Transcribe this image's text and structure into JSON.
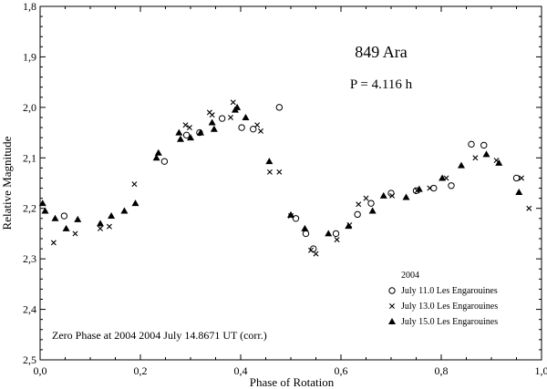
{
  "chart_data": {
    "type": "scatter",
    "title": "849 Ara",
    "subtitle": "P = 4.116 h",
    "xlabel": "Phase of Rotation",
    "ylabel": "Relative Magnitude",
    "xlim": [
      0.0,
      1.0
    ],
    "ylim": [
      1.8,
      2.5
    ],
    "y_inverted": true,
    "x_ticks": [
      {
        "value": 0.0,
        "label": "0,0"
      },
      {
        "value": 0.2,
        "label": "0,2"
      },
      {
        "value": 0.4,
        "label": "0,4"
      },
      {
        "value": 0.6,
        "label": "0,6"
      },
      {
        "value": 0.8,
        "label": "0,8"
      },
      {
        "value": 1.0,
        "label": "1,0"
      }
    ],
    "y_ticks": [
      {
        "value": 1.8,
        "label": "1,8"
      },
      {
        "value": 1.9,
        "label": "1,9"
      },
      {
        "value": 2.0,
        "label": "2,0"
      },
      {
        "value": 2.1,
        "label": "2,1"
      },
      {
        "value": 2.2,
        "label": "2,2"
      },
      {
        "value": 2.3,
        "label": "2,3"
      },
      {
        "value": 2.4,
        "label": "2,4"
      },
      {
        "value": 2.5,
        "label": "2,5"
      }
    ],
    "legend_title": "2004",
    "legend_position": "bottom-right",
    "annotation": "Zero Phase at 2004 2004 July 14.8671 UT (corr.)",
    "grid": false,
    "series": [
      {
        "name": "July 11.0 Les Engarouines",
        "marker": "circle",
        "points": [
          [
            0.048,
            2.215
          ],
          [
            0.248,
            2.107
          ],
          [
            0.292,
            2.055
          ],
          [
            0.318,
            2.05
          ],
          [
            0.363,
            2.022
          ],
          [
            0.402,
            2.04
          ],
          [
            0.425,
            2.043
          ],
          [
            0.477,
            2.0
          ],
          [
            0.51,
            2.22
          ],
          [
            0.53,
            2.25
          ],
          [
            0.545,
            2.28
          ],
          [
            0.59,
            2.25
          ],
          [
            0.633,
            2.212
          ],
          [
            0.66,
            2.19
          ],
          [
            0.7,
            2.17
          ],
          [
            0.75,
            2.165
          ],
          [
            0.785,
            2.16
          ],
          [
            0.82,
            2.155
          ],
          [
            0.86,
            2.073
          ],
          [
            0.885,
            2.075
          ],
          [
            0.95,
            2.14
          ]
        ]
      },
      {
        "name": "July 13.0 Les Engarouines",
        "marker": "cross",
        "points": [
          [
            0.027,
            2.268
          ],
          [
            0.07,
            2.25
          ],
          [
            0.12,
            2.24
          ],
          [
            0.138,
            2.236
          ],
          [
            0.188,
            2.152
          ],
          [
            0.29,
            2.035
          ],
          [
            0.298,
            2.04
          ],
          [
            0.338,
            2.01
          ],
          [
            0.343,
            2.015
          ],
          [
            0.38,
            2.02
          ],
          [
            0.385,
            1.99
          ],
          [
            0.433,
            2.035
          ],
          [
            0.44,
            2.047
          ],
          [
            0.458,
            2.128
          ],
          [
            0.477,
            2.128
          ],
          [
            0.5,
            2.215
          ],
          [
            0.54,
            2.283
          ],
          [
            0.55,
            2.29
          ],
          [
            0.592,
            2.262
          ],
          [
            0.617,
            2.233
          ],
          [
            0.635,
            2.192
          ],
          [
            0.65,
            2.18
          ],
          [
            0.702,
            2.175
          ],
          [
            0.752,
            2.165
          ],
          [
            0.777,
            2.16
          ],
          [
            0.81,
            2.14
          ],
          [
            0.868,
            2.1
          ],
          [
            0.91,
            2.105
          ],
          [
            0.96,
            2.14
          ],
          [
            0.975,
            2.2
          ]
        ]
      },
      {
        "name": "July 15.0 Les Engarouines",
        "marker": "triangle",
        "points": [
          [
            0.005,
            2.19
          ],
          [
            0.01,
            2.205
          ],
          [
            0.03,
            2.22
          ],
          [
            0.052,
            2.24
          ],
          [
            0.075,
            2.222
          ],
          [
            0.12,
            2.23
          ],
          [
            0.142,
            2.215
          ],
          [
            0.168,
            2.205
          ],
          [
            0.19,
            2.19
          ],
          [
            0.232,
            2.1
          ],
          [
            0.236,
            2.09
          ],
          [
            0.277,
            2.05
          ],
          [
            0.28,
            2.063
          ],
          [
            0.3,
            2.06
          ],
          [
            0.32,
            2.05
          ],
          [
            0.343,
            2.03
          ],
          [
            0.347,
            2.043
          ],
          [
            0.389,
            2.005
          ],
          [
            0.393,
            2.0
          ],
          [
            0.41,
            2.02
          ],
          [
            0.457,
            2.107
          ],
          [
            0.5,
            2.213
          ],
          [
            0.528,
            2.24
          ],
          [
            0.575,
            2.25
          ],
          [
            0.615,
            2.235
          ],
          [
            0.663,
            2.205
          ],
          [
            0.685,
            2.175
          ],
          [
            0.73,
            2.178
          ],
          [
            0.756,
            2.162
          ],
          [
            0.802,
            2.14
          ],
          [
            0.84,
            2.115
          ],
          [
            0.89,
            2.093
          ],
          [
            0.915,
            2.11
          ],
          [
            0.955,
            2.168
          ]
        ]
      }
    ]
  }
}
